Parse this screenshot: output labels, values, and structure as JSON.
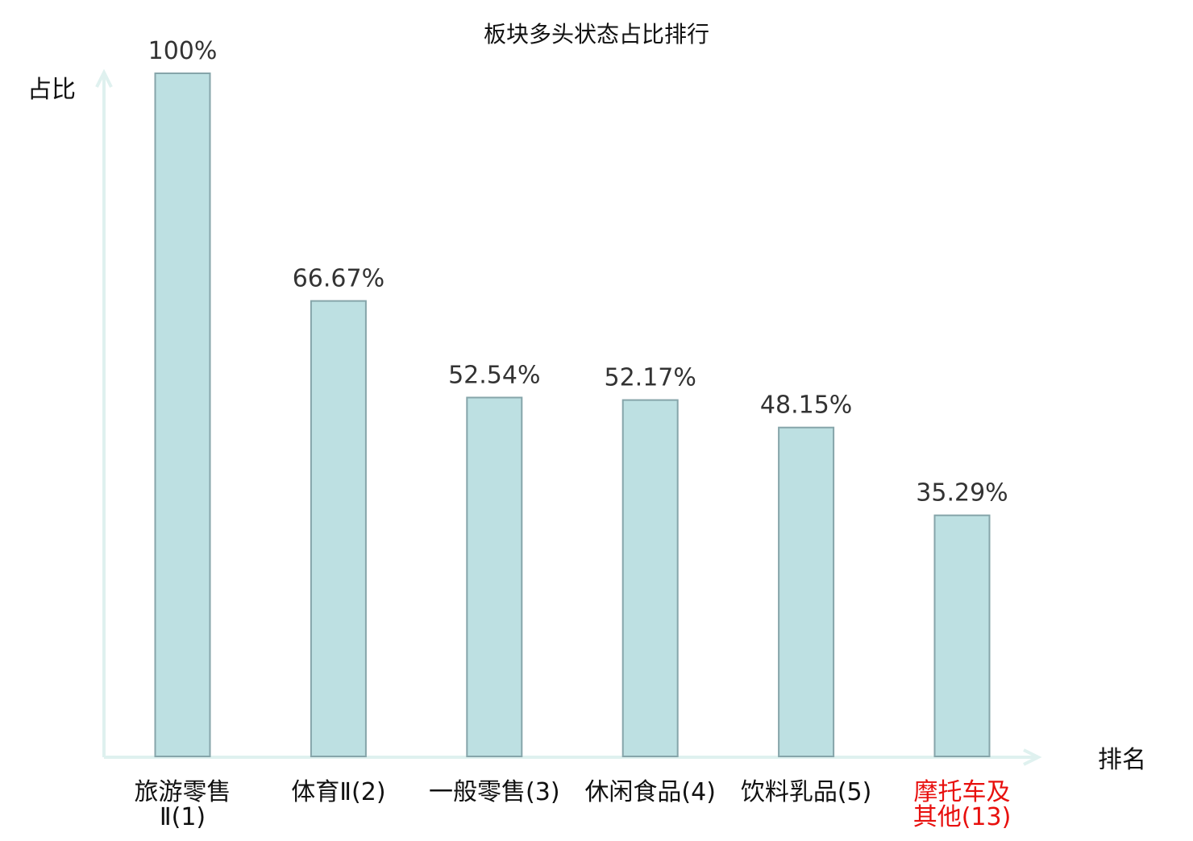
{
  "chart_data": {
    "type": "bar",
    "title": "板块多头状态占比排行",
    "ylabel": "占比",
    "xlabel": "排名",
    "ylim": [
      0,
      100
    ],
    "grid": false,
    "categories": [
      [
        "旅游零售",
        "Ⅱ(1)"
      ],
      [
        "体育Ⅱ(2)"
      ],
      [
        "一般零售(3)"
      ],
      [
        "休闲食品(4)"
      ],
      [
        "饮料乳品(5)"
      ],
      [
        "摩托车及",
        "其他(13)"
      ]
    ],
    "values": [
      100,
      66.67,
      52.54,
      52.17,
      48.15,
      35.29
    ],
    "value_labels": [
      "100%",
      "66.67%",
      "52.54%",
      "52.17%",
      "48.15%",
      "35.29%"
    ],
    "highlight_index": 5,
    "colors": {
      "bar_fill": "#bde0e2",
      "bar_stroke": "#86a5aa",
      "axis": "#dff1ef",
      "label_text": "#111111",
      "value_text": "#333333",
      "highlight_text": "#e8100e"
    }
  }
}
